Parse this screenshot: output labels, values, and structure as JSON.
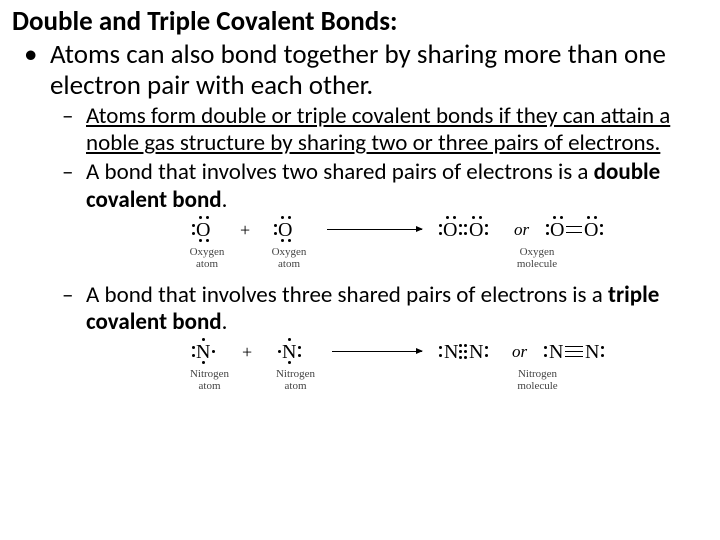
{
  "heading": "Double and Triple Covalent Bonds:",
  "level1_bullet": "•",
  "level1_text": "Atoms can also bond together by sharing more than one electron pair with each other.",
  "dash": "–",
  "sub1": "Atoms form double or triple covalent bonds if they can attain a noble gas structure by sharing two or three pairs of electrons.",
  "sub2_a": "A bond that involves two shared pairs of electrons is a ",
  "sub2_b": "double covalent bond",
  "sub2_c": ".",
  "sub3_a": "A bond that involves three shared pairs of electrons is a ",
  "sub3_b": "triple covalent bond",
  "sub3_c": ".",
  "or": "or",
  "plus": "+",
  "oxy": {
    "letter": "O",
    "atom_cap": "Oxygen\natom",
    "mol_cap": "Oxygen\nmolecule"
  },
  "nit": {
    "letter": "N",
    "atom_cap": "Nitrogen\natom",
    "mol_cap": "Nitrogen\nmolecule"
  },
  "colors": {
    "text": "#000000",
    "caption": "#444444",
    "bg": "#ffffff"
  }
}
